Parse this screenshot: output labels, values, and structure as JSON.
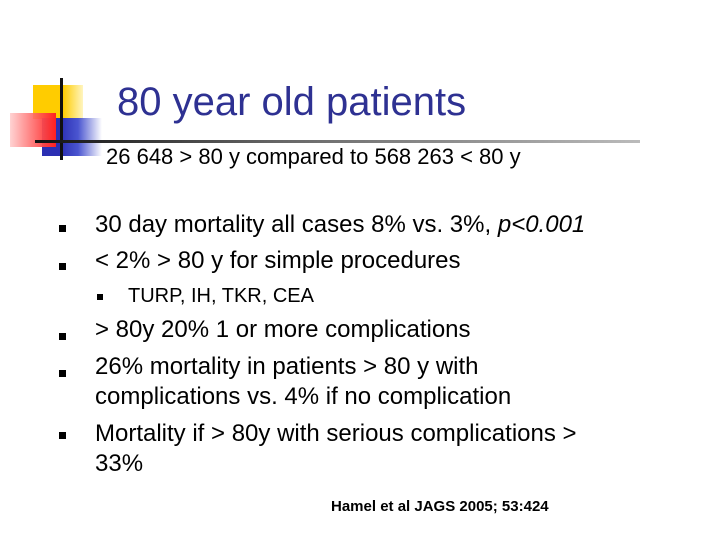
{
  "title": "80 year old patients",
  "subtitle": "26 648 > 80 y  compared to 568 263 < 80 y",
  "bullets": [
    {
      "text": "30 day mortality all cases 8% vs. 3%, ",
      "italic": "p<0.001"
    },
    {
      "text": "< 2% > 80 y for simple procedures"
    },
    {
      "text": "TURP, IH, TKR, CEA"
    },
    {
      "text": "> 80y  20% 1 or more complications"
    },
    {
      "line1": " 26% mortality in patients > 80 y with",
      "line2": "complications vs. 4% if no complication"
    },
    {
      "line1": "Mortality if > 80y with serious complications >",
      "line2": "33%"
    }
  ],
  "citation": "Hamel et al JAGS 2005; 53:424",
  "colors": {
    "title": "#2e3192"
  }
}
